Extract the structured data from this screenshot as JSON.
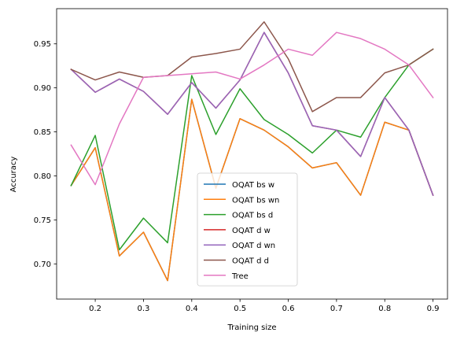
{
  "chart_data": {
    "type": "line",
    "title": "",
    "xlabel": "Training size",
    "ylabel": "Accuracy",
    "xlim": [
      0.12,
      0.93
    ],
    "ylim": [
      0.66,
      0.99
    ],
    "xticks": [
      0.2,
      0.3,
      0.4,
      0.5,
      0.6,
      0.7,
      0.8,
      0.9
    ],
    "xtick_labels": [
      "0.2",
      "0.3",
      "0.4",
      "0.5",
      "0.6",
      "0.7",
      "0.8",
      "0.9"
    ],
    "yticks": [
      0.7,
      0.75,
      0.8,
      0.85,
      0.9,
      0.95
    ],
    "ytick_labels": [
      "0.70",
      "0.75",
      "0.80",
      "0.85",
      "0.90",
      "0.95"
    ],
    "legend_position": "lower center",
    "grid": false,
    "x": [
      0.15,
      0.2,
      0.25,
      0.3,
      0.35,
      0.4,
      0.45,
      0.5,
      0.55,
      0.6,
      0.65,
      0.7,
      0.75,
      0.8,
      0.85,
      0.9
    ],
    "series": [
      {
        "name": "OQAT bs w",
        "color": "#1f77b4",
        "values": [
          0.789,
          0.832,
          0.709,
          0.736,
          0.681,
          0.887,
          0.786,
          0.865,
          0.852,
          0.833,
          0.809,
          0.815,
          0.778,
          0.861,
          0.852,
          0.778
        ]
      },
      {
        "name": "OQAT bs wn",
        "color": "#ff7f0e",
        "values": [
          0.789,
          0.832,
          0.709,
          0.736,
          0.681,
          0.887,
          0.786,
          0.865,
          0.852,
          0.833,
          0.809,
          0.815,
          0.778,
          0.861,
          0.852,
          0.778
        ]
      },
      {
        "name": "OQAT bs d",
        "color": "#2ca02c",
        "values": [
          0.789,
          0.846,
          0.716,
          0.752,
          0.724,
          0.914,
          0.847,
          0.899,
          0.864,
          0.847,
          0.826,
          0.852,
          0.844,
          0.889,
          0.926,
          0.944
        ]
      },
      {
        "name": "OQAT d w",
        "color": "#d62728",
        "values": [
          0.921,
          0.895,
          0.91,
          0.896,
          0.87,
          0.906,
          0.877,
          0.909,
          0.963,
          0.917,
          0.857,
          0.852,
          0.822,
          0.889,
          0.852,
          0.778
        ]
      },
      {
        "name": "OQAT d wn",
        "color": "#9467bd",
        "values": [
          0.921,
          0.895,
          0.91,
          0.896,
          0.87,
          0.906,
          0.877,
          0.909,
          0.963,
          0.917,
          0.857,
          0.852,
          0.822,
          0.889,
          0.852,
          0.778
        ]
      },
      {
        "name": "OQAT d d",
        "color": "#8c564b",
        "values": [
          0.921,
          0.909,
          0.918,
          0.912,
          0.914,
          0.935,
          0.939,
          0.944,
          0.975,
          0.933,
          0.873,
          0.889,
          0.889,
          0.917,
          0.926,
          0.944
        ]
      },
      {
        "name": "Tree",
        "color": "#e377c2",
        "values": [
          0.835,
          0.79,
          0.859,
          0.912,
          0.914,
          0.916,
          0.918,
          0.91,
          0.926,
          0.944,
          0.937,
          0.963,
          0.956,
          0.944,
          0.926,
          0.889
        ]
      }
    ]
  }
}
